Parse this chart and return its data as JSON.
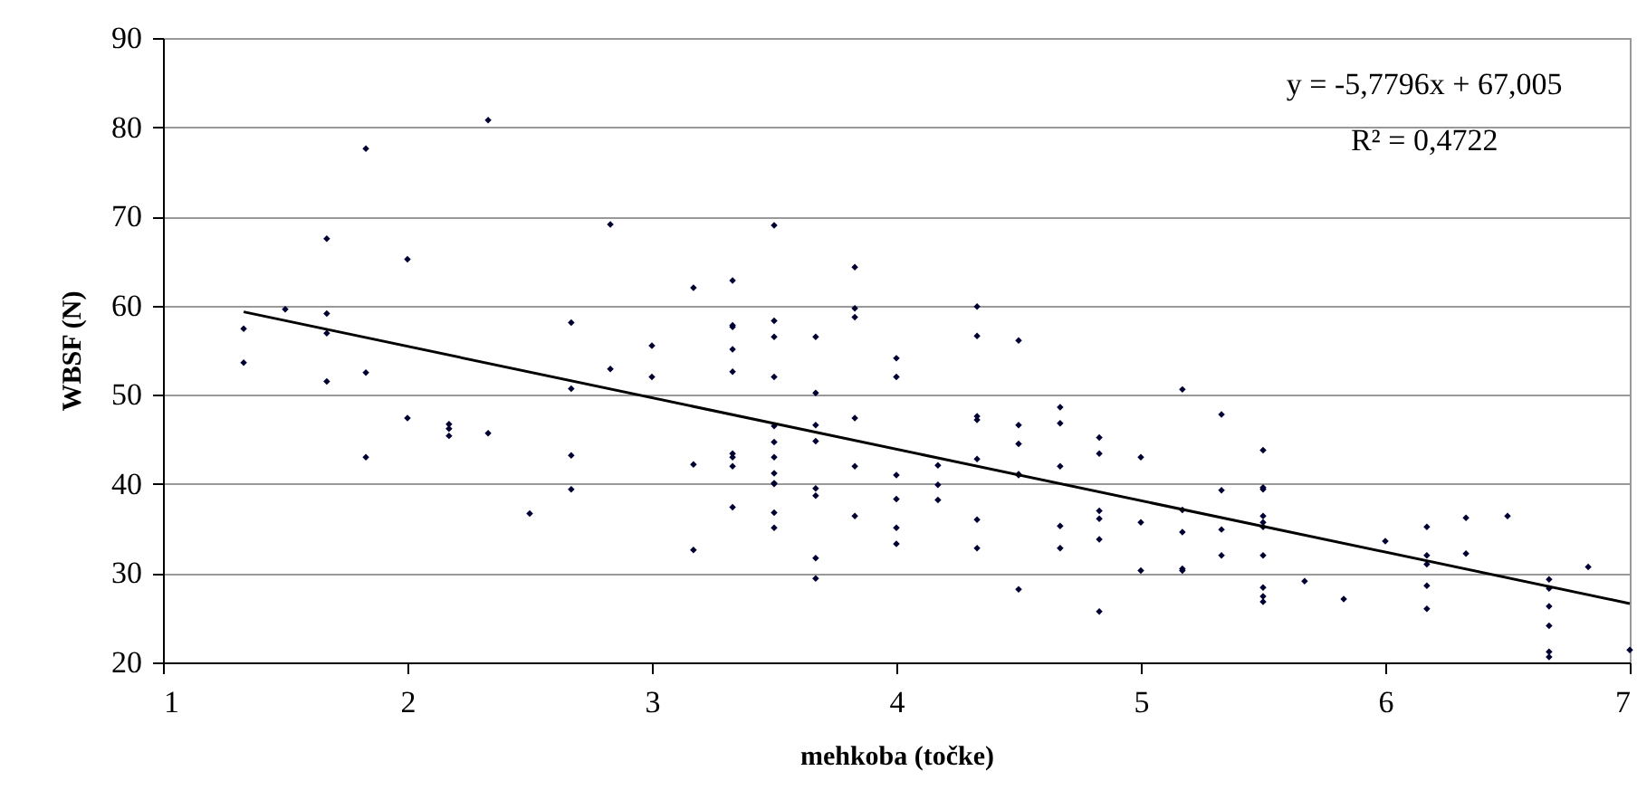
{
  "chart_data": {
    "type": "scatter",
    "xlabel": "mehkoba (točke)",
    "ylabel": "WBSF (N)",
    "xlim": [
      1,
      7
    ],
    "xticks": [
      1,
      2,
      3,
      4,
      5,
      6,
      7
    ],
    "ylim": [
      20,
      90
    ],
    "yticks": [
      20,
      30,
      40,
      50,
      60,
      70,
      80,
      90
    ],
    "grid": "y",
    "annotations": [
      "y = -5,7796x + 67,005",
      "R² = 0,4722"
    ],
    "series": [
      {
        "marker": "diamond",
        "color": "#000033",
        "x": [
          1.33,
          1.33,
          1.5,
          1.67,
          1.67,
          1.67,
          1.67,
          1.83,
          1.83,
          1.83,
          2,
          2,
          2.17,
          2.17,
          2.17,
          2.33,
          2.33,
          2.5,
          2.67,
          2.67,
          2.67,
          2.67,
          2.83,
          2.83,
          3,
          3,
          3.17,
          3.17,
          3.17,
          3.33,
          3.33,
          3.33,
          3.33,
          3.33,
          3.33,
          3.33,
          3.33,
          3.33,
          3.5,
          3.5,
          3.5,
          3.5,
          3.5,
          3.5,
          3.5,
          3.5,
          3.5,
          3.5,
          3.5,
          3.5,
          3.67,
          3.67,
          3.67,
          3.67,
          3.67,
          3.67,
          3.67,
          3.67,
          3.83,
          3.83,
          3.83,
          3.83,
          3.83,
          3.83,
          4,
          4,
          4,
          4,
          4,
          4,
          4.17,
          4.17,
          4.17,
          4.33,
          4.33,
          4.33,
          4.33,
          4.33,
          4.33,
          4.33,
          4.5,
          4.5,
          4.5,
          4.5,
          4.5,
          4.5,
          4.67,
          4.67,
          4.67,
          4.67,
          4.67,
          4.83,
          4.83,
          4.83,
          4.83,
          4.83,
          4.83,
          5,
          5,
          5,
          5.17,
          5.17,
          5.17,
          5.17,
          5.17,
          5.33,
          5.33,
          5.33,
          5.33,
          5.5,
          5.5,
          5.5,
          5.5,
          5.5,
          5.5,
          5.5,
          5.5,
          5.5,
          5.5,
          5.67,
          5.83,
          6,
          6.17,
          6.17,
          6.17,
          6.17,
          6.17,
          6.33,
          6.33,
          6.5,
          6.67,
          6.67,
          6.67,
          6.67,
          6.67,
          6.67,
          6.83,
          7
        ],
        "values": [
          57.4,
          53.6,
          59.6,
          67.5,
          59.1,
          56.9,
          51.5,
          77.6,
          52.5,
          43.0,
          65.2,
          47.4,
          46.7,
          46.2,
          45.4,
          80.8,
          45.7,
          36.7,
          58.1,
          50.7,
          43.2,
          39.4,
          69.1,
          52.9,
          55.5,
          52.0,
          62.0,
          42.2,
          32.6,
          62.8,
          57.8,
          57.6,
          55.1,
          52.6,
          43.4,
          43.0,
          42.0,
          37.4,
          69.0,
          58.3,
          56.5,
          52.0,
          46.5,
          44.7,
          43.0,
          41.2,
          40.1,
          40.0,
          36.8,
          35.1,
          56.5,
          50.2,
          46.6,
          44.8,
          39.5,
          38.7,
          31.7,
          29.4,
          64.3,
          59.7,
          58.7,
          47.4,
          42.0,
          36.4,
          54.1,
          52.0,
          41.0,
          38.3,
          35.1,
          33.3,
          42.1,
          39.9,
          38.2,
          59.9,
          56.6,
          47.6,
          47.2,
          42.8,
          36.0,
          32.8,
          56.1,
          46.6,
          44.5,
          41.1,
          41.0,
          28.2,
          48.6,
          46.8,
          42.0,
          35.3,
          32.8,
          45.2,
          43.4,
          37.0,
          36.1,
          33.8,
          25.7,
          43.0,
          35.7,
          30.3,
          50.6,
          37.1,
          34.6,
          30.5,
          30.3,
          47.8,
          39.3,
          34.9,
          32.0,
          43.8,
          39.6,
          39.4,
          36.4,
          35.7,
          35.2,
          32.0,
          28.4,
          27.4,
          26.8,
          29.1,
          27.1,
          33.6,
          35.2,
          32.0,
          31.0,
          28.6,
          26.0,
          36.2,
          32.2,
          36.4,
          29.3,
          28.3,
          26.3,
          24.1,
          21.2,
          20.6,
          30.7,
          21.4
        ]
      },
      {
        "type": "line",
        "marker": "none",
        "color": "#000000",
        "x": [
          1.33,
          7
        ],
        "values": [
          59.3,
          26.6
        ]
      }
    ]
  }
}
